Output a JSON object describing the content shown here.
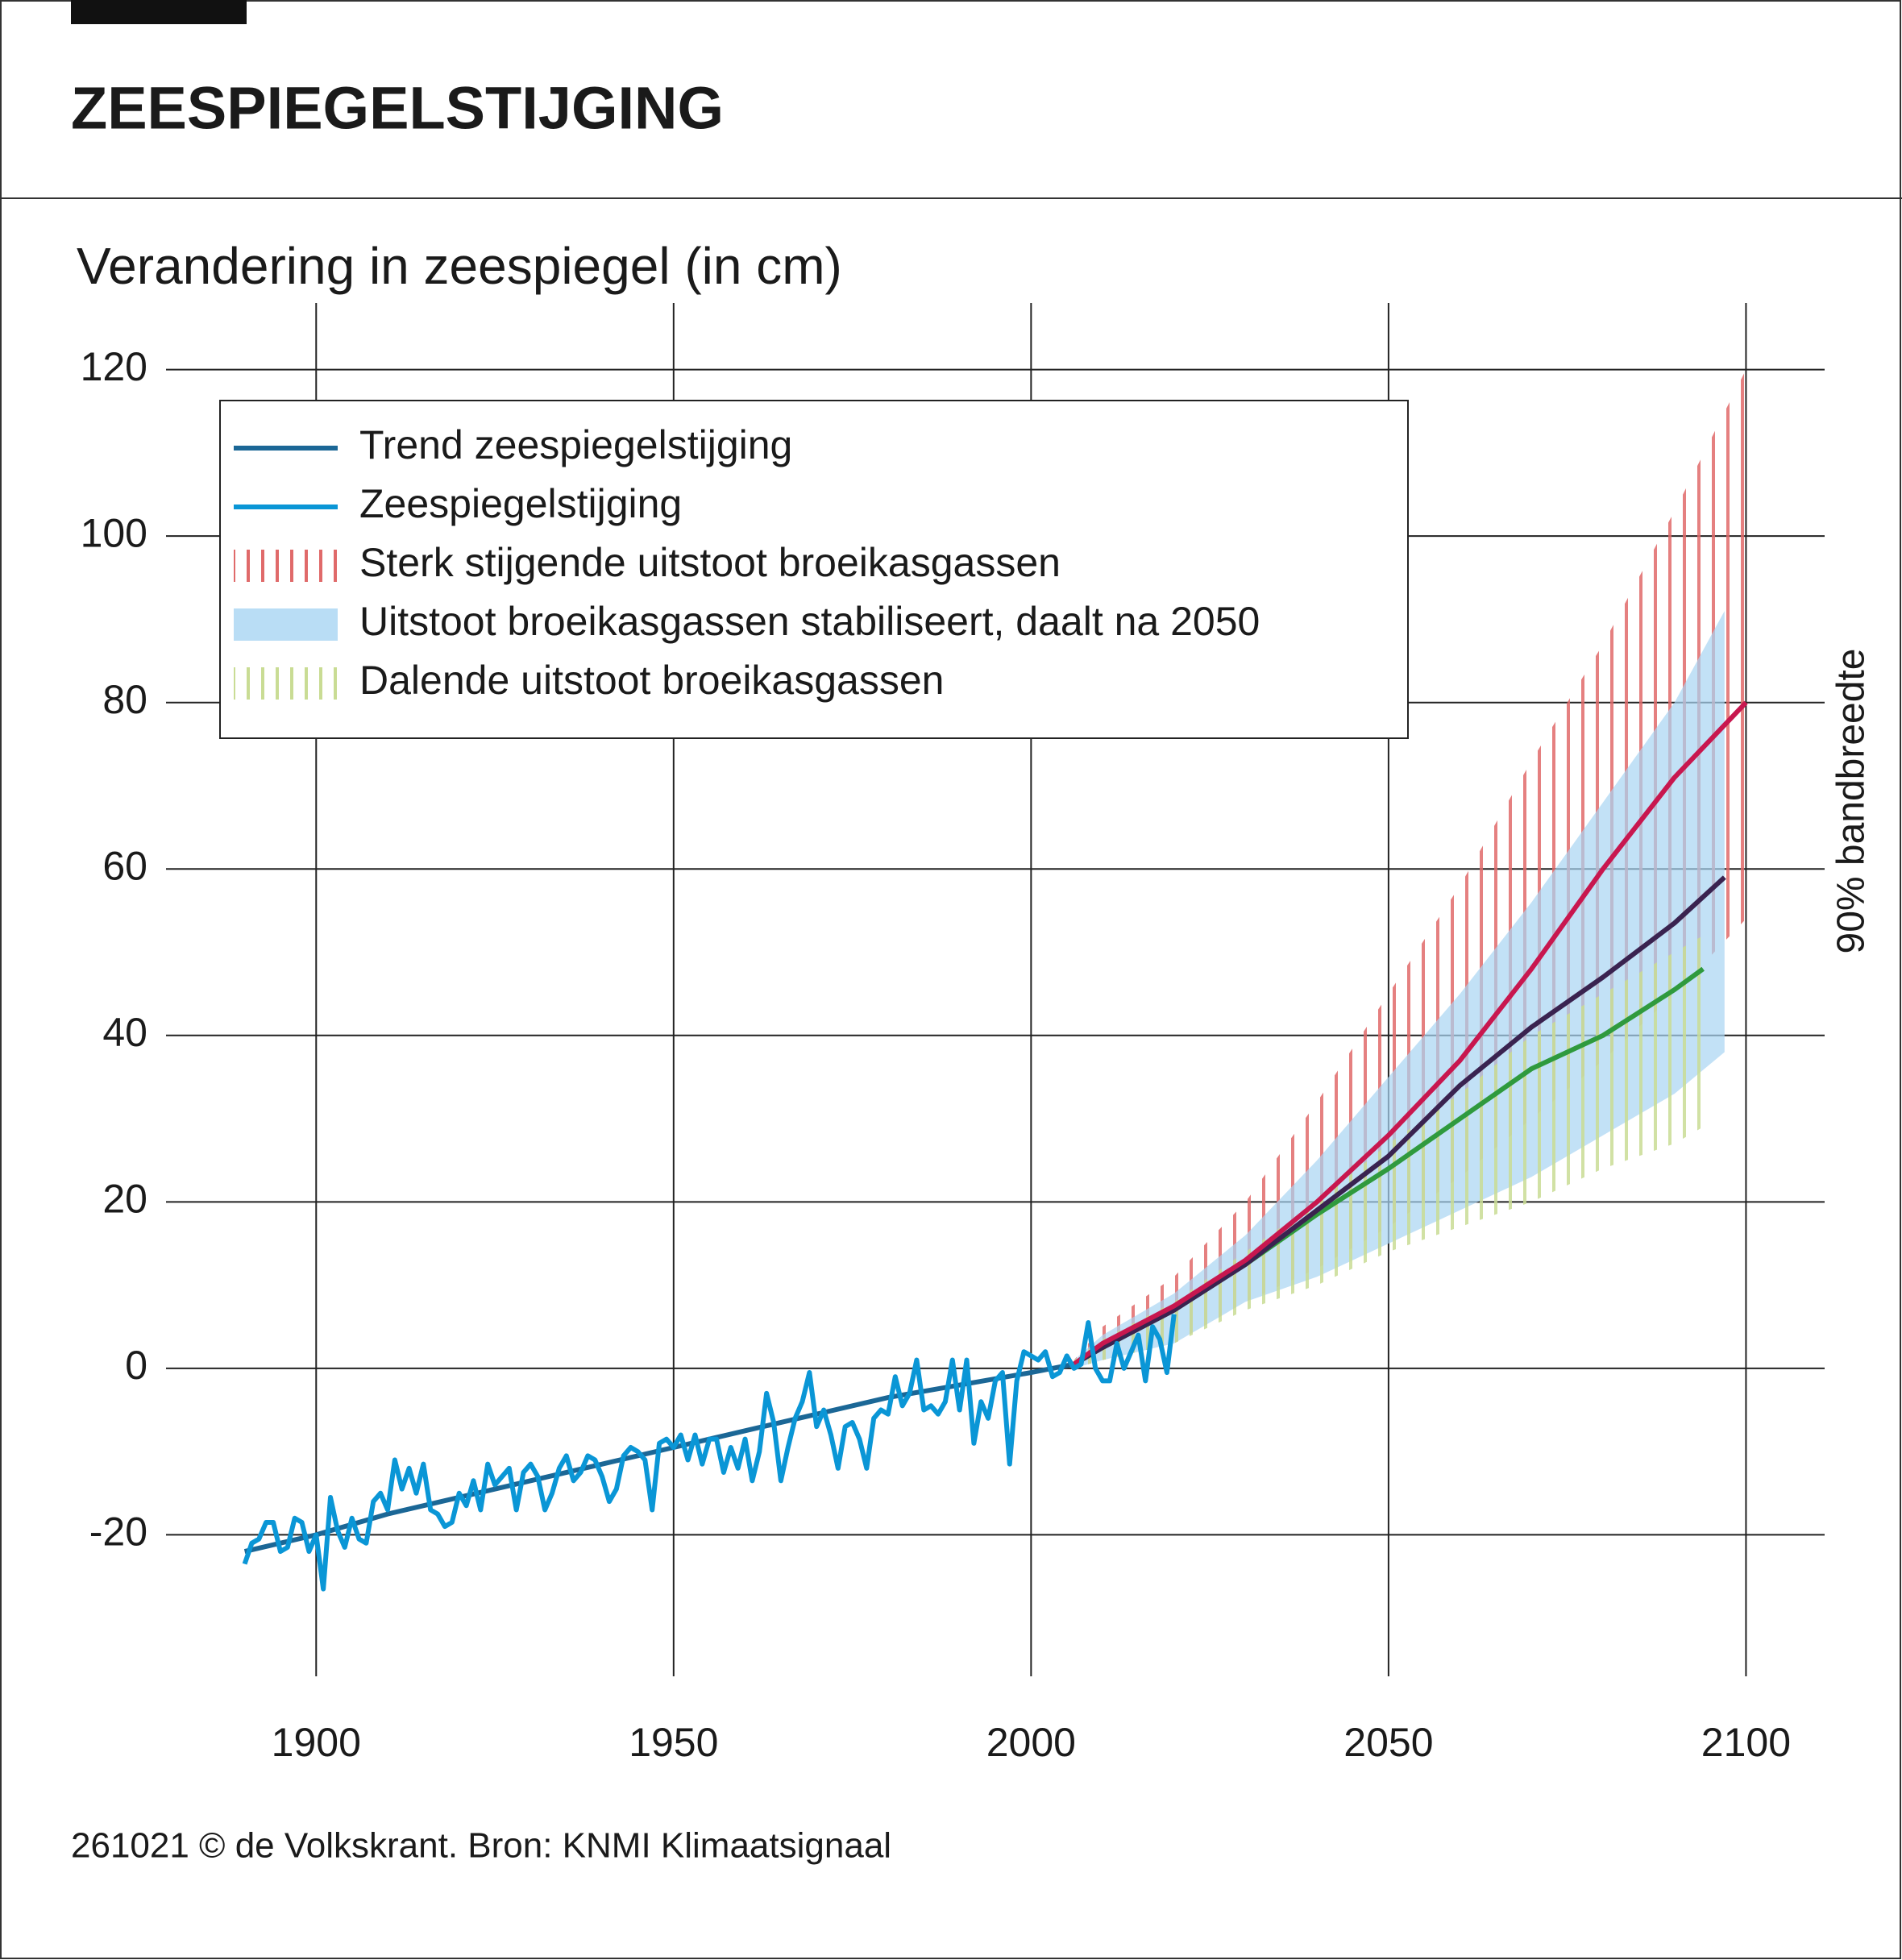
{
  "chart_data": {
    "type": "line",
    "title": "ZEESPIEGELSTIJGING",
    "subtitle": "Verandering in zeespiegel (in cm)",
    "right_label": "90% bandbreedte",
    "source": "261021 © de Volkskrant. Bron: KNMI Klimaatsignaal",
    "xlim": [
      1879,
      2111
    ],
    "ylim": [
      -37,
      128
    ],
    "xticks": [
      1900,
      1950,
      2000,
      2050,
      2100
    ],
    "yticks": [
      -20,
      0,
      20,
      40,
      60,
      80,
      100,
      120
    ],
    "grid": true,
    "legend": "upper left",
    "series": [
      {
        "name": "Trend zeespiegelstijging",
        "color": "#1b6796",
        "x": [
          1890,
          1900,
          1910,
          1920,
          1930,
          1940,
          1950,
          1960,
          1970,
          1980,
          1990,
          2000,
          2006
        ],
        "values": [
          -22,
          -20,
          -17.5,
          -15.5,
          -13.5,
          -11.5,
          -9.5,
          -7.5,
          -5.5,
          -3.5,
          -2,
          -0.5,
          0.5
        ]
      },
      {
        "name": "Zeespiegelstijging",
        "color": "#0a96d6",
        "x": [
          1890,
          1891,
          1892,
          1893,
          1894,
          1895,
          1896,
          1897,
          1898,
          1899,
          1900,
          1901,
          1902,
          1903,
          1904,
          1905,
          1906,
          1907,
          1908,
          1909,
          1910,
          1911,
          1912,
          1913,
          1914,
          1915,
          1916,
          1917,
          1918,
          1919,
          1920,
          1921,
          1922,
          1923,
          1924,
          1925,
          1926,
          1927,
          1928,
          1929,
          1930,
          1931,
          1932,
          1933,
          1934,
          1935,
          1936,
          1937,
          1938,
          1939,
          1940,
          1941,
          1942,
          1943,
          1944,
          1945,
          1946,
          1947,
          1948,
          1949,
          1950,
          1951,
          1952,
          1953,
          1954,
          1955,
          1956,
          1957,
          1958,
          1959,
          1960,
          1961,
          1962,
          1963,
          1964,
          1965,
          1966,
          1967,
          1968,
          1969,
          1970,
          1971,
          1972,
          1973,
          1974,
          1975,
          1976,
          1977,
          1978,
          1979,
          1980,
          1981,
          1982,
          1983,
          1984,
          1985,
          1986,
          1987,
          1988,
          1989,
          1990,
          1991,
          1992,
          1993,
          1994,
          1995,
          1996,
          1997,
          1998,
          1999,
          2000,
          2001,
          2002,
          2003,
          2004,
          2005,
          2006,
          2007,
          2008,
          2009,
          2010,
          2011,
          2012,
          2013,
          2014,
          2015,
          2016,
          2017,
          2018,
          2019,
          2020
        ],
        "values": [
          -23.5,
          -21,
          -20.5,
          -18.5,
          -18.5,
          -22,
          -21.5,
          -18,
          -18.5,
          -22,
          -20,
          -26.5,
          -15.5,
          -19.5,
          -21.5,
          -18,
          -20.5,
          -21,
          -16,
          -15,
          -17,
          -11,
          -14.5,
          -12,
          -15,
          -11.5,
          -17,
          -17.5,
          -19,
          -18.5,
          -15,
          -16.5,
          -13.5,
          -17,
          -11.5,
          -14,
          -13,
          -12,
          -17,
          -12.5,
          -11.5,
          -13,
          -17,
          -15,
          -12,
          -10.5,
          -13.5,
          -12.5,
          -10.5,
          -11,
          -13,
          -16,
          -14.5,
          -10.5,
          -9.5,
          -10,
          -11,
          -17,
          -9,
          -8.5,
          -9.5,
          -8,
          -11,
          -8,
          -11.5,
          -8.5,
          -8.5,
          -12.5,
          -9.5,
          -12,
          -8.5,
          -13.5,
          -10,
          -3,
          -6.5,
          -13.5,
          -9.5,
          -6,
          -4,
          -0.5,
          -7,
          -5,
          -8,
          -12,
          -7,
          -6.5,
          -8.5,
          -12,
          -6,
          -5,
          -5.5,
          -1,
          -4.5,
          -3,
          1,
          -5,
          -4.5,
          -5.5,
          -4,
          1,
          -5,
          1,
          -9,
          -4,
          -6,
          -1.5,
          -0.5,
          -11.5,
          -1.5,
          2,
          1.5,
          1,
          2,
          -1,
          -0.5,
          1.5,
          0,
          0.5,
          5.5,
          0,
          -1.5,
          -1.5,
          3,
          0,
          2,
          4,
          -1.5,
          5,
          3.5,
          -0.5,
          6.5
        ]
      },
      {
        "name": "Sterk stijgende uitstoot broeikasgassen",
        "color": "#c8174f",
        "band_color": "#e06a6a",
        "band_style": "hatch",
        "x": [
          2006,
          2010,
          2020,
          2030,
          2040,
          2050,
          2060,
          2070,
          2080,
          2090,
          2100
        ],
        "values": [
          0.5,
          3,
          7.5,
          13,
          20,
          28,
          37,
          48,
          60,
          71,
          80
        ],
        "lower": [
          0,
          1,
          3,
          8,
          12,
          17,
          23,
          30,
          37,
          45,
          54
        ],
        "upper": [
          1,
          5,
          11,
          20,
          32,
          45,
          58,
          73,
          87,
          103,
          120
        ]
      },
      {
        "name": "Uitstoot broeikasgassen stabiliseert, daalt na 2050",
        "color": "#3a2350",
        "band_color": "#a8d4f2",
        "band_style": "fill",
        "x": [
          2006,
          2010,
          2020,
          2030,
          2040,
          2050,
          2060,
          2070,
          2080,
          2090,
          2097
        ],
        "values": [
          0.5,
          2.5,
          7,
          12.5,
          19,
          25.5,
          34,
          41,
          47,
          53.5,
          59
        ],
        "lower": [
          0,
          1,
          3,
          8,
          11,
          15,
          19,
          23,
          28,
          33,
          38
        ],
        "upper": [
          1,
          4,
          9,
          16,
          25,
          35,
          45,
          56,
          68,
          80,
          91
        ]
      },
      {
        "name": "Dalende uitstoot broeikasgassen",
        "color": "#2f9a3e",
        "band_color": "#c9dc94",
        "band_style": "hatch",
        "x": [
          2006,
          2010,
          2020,
          2030,
          2040,
          2050,
          2060,
          2070,
          2080,
          2090,
          2094
        ],
        "values": [
          0.5,
          2.5,
          7,
          12.5,
          18.5,
          24,
          30,
          36,
          40,
          45.5,
          48
        ],
        "lower": [
          0,
          1,
          3,
          7,
          10,
          14,
          17,
          20,
          24,
          27,
          29
        ],
        "upper": [
          1,
          3.5,
          8,
          14,
          20,
          27,
          33,
          40,
          45,
          50,
          52
        ]
      }
    ]
  }
}
